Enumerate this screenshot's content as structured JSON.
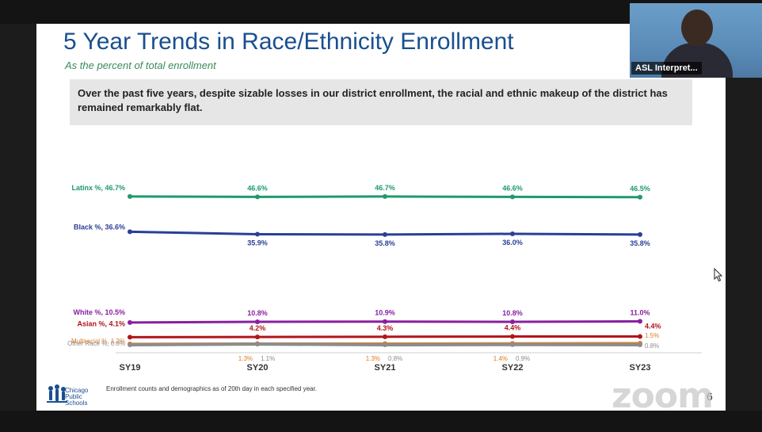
{
  "slide": {
    "title": "5 Year Trends in Race/Ethnicity Enrollment",
    "subtitle": "As the percent of total enrollment",
    "callout": "Over the past five years, despite sizable losses in our district enrollment, the racial and ethnic makeup of the district has remained remarkably flat.",
    "footnote": "Enrollment counts and demographics as of 20th day in each specified year.",
    "logo_lines": [
      "Chicago",
      "Public",
      "Schools"
    ],
    "page_number": "6"
  },
  "video": {
    "label": "ASL Interpret..."
  },
  "watermark": "zoom",
  "chart_data": {
    "type": "line",
    "categories": [
      "SY19",
      "SY20",
      "SY21",
      "SY22",
      "SY23"
    ],
    "ylim": [
      0,
      50
    ],
    "series": [
      {
        "name": "Latinx %",
        "legend_label": "Latinx %, 46.7%",
        "color": "#1f9a6b",
        "values": [
          46.7,
          46.6,
          46.7,
          46.6,
          46.5
        ],
        "point_labels": [
          "",
          "46.6%",
          "46.7%",
          "46.6%",
          "46.5%"
        ],
        "label_pos": "above"
      },
      {
        "name": "Black %",
        "legend_label": "Black %, 36.6%",
        "color": "#2a3f96",
        "values": [
          36.6,
          35.9,
          35.8,
          36.0,
          35.8
        ],
        "point_labels": [
          "",
          "35.9%",
          "35.8%",
          "36.0%",
          "35.8%"
        ],
        "label_pos": "below"
      },
      {
        "name": "White %",
        "legend_label": "White %, 10.5%",
        "color": "#8a1fa0",
        "values": [
          10.5,
          10.8,
          10.9,
          10.8,
          11.0
        ],
        "point_labels": [
          "",
          "10.8%",
          "10.9%",
          "10.8%",
          "11.0%"
        ],
        "label_pos": "above"
      },
      {
        "name": "Asian %",
        "legend_label": "Asian %, 4.1%",
        "color": "#b0161c",
        "values": [
          4.1,
          4.2,
          4.3,
          4.4,
          4.4
        ],
        "point_labels": [
          "",
          "4.2%",
          "4.3%",
          "4.4%",
          "4.4%"
        ],
        "label_pos": "above"
      },
      {
        "name": "Multiracial %",
        "legend_label": "Multiracial %, 1.2%",
        "color": "#e07c22",
        "values": [
          1.2,
          1.3,
          1.3,
          1.4,
          1.5
        ],
        "point_labels": [
          "",
          "1.3%",
          "1.3%",
          "1.4%",
          "1.5%"
        ],
        "label_pos": "below-left"
      },
      {
        "name": "Other Race %",
        "legend_label": "Other Race %, 0.8%",
        "color": "#8c8c8c",
        "values": [
          0.8,
          1.1,
          0.8,
          0.9,
          0.8
        ],
        "point_labels": [
          "",
          "1.1%",
          "0.8%",
          "0.9%",
          "0.8%"
        ],
        "label_pos": "below-right"
      }
    ]
  }
}
